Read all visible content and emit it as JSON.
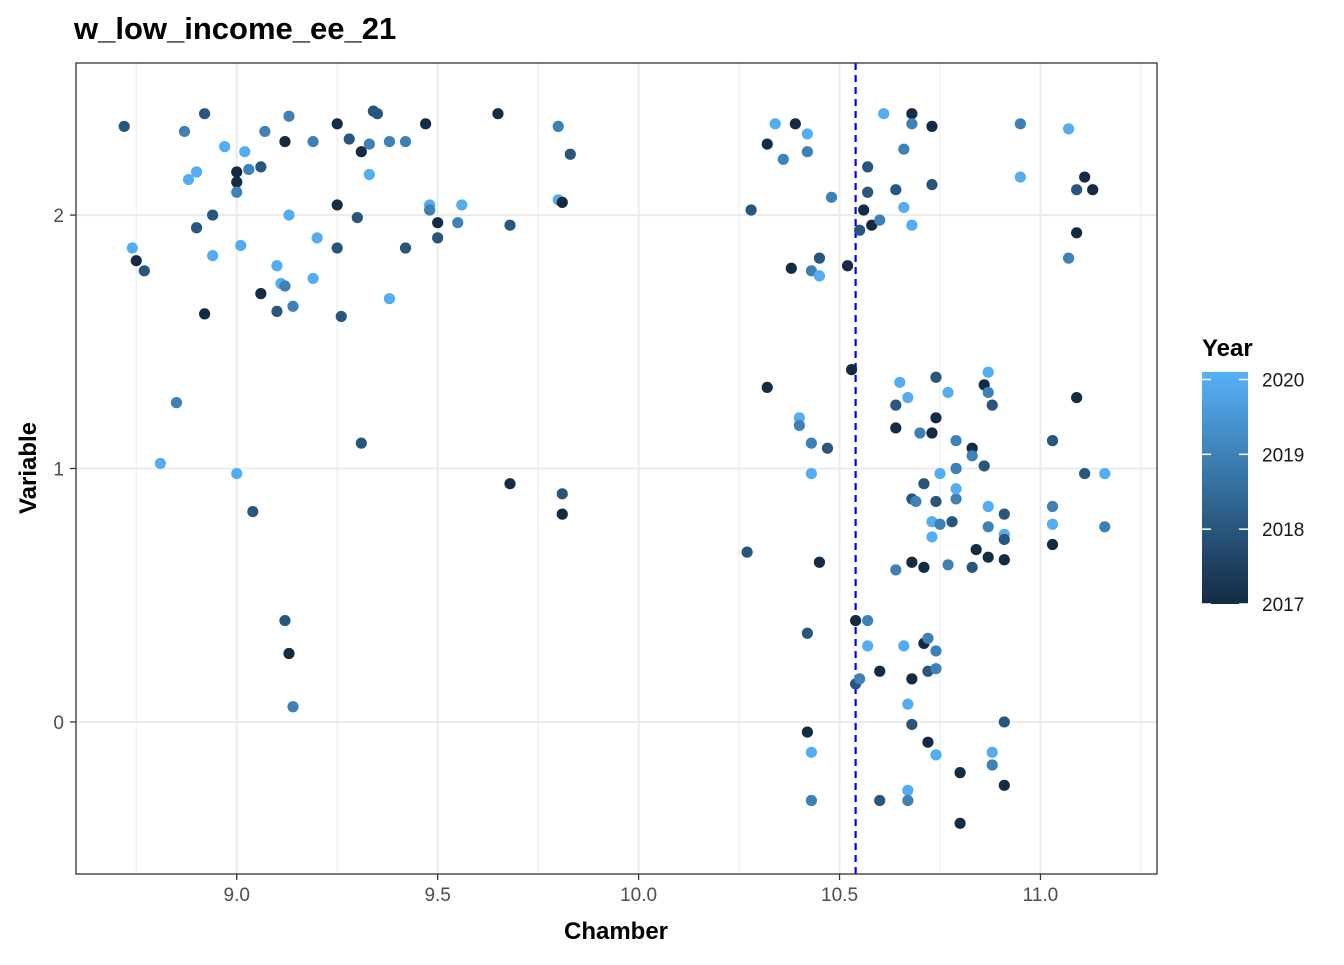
{
  "chart_data": {
    "type": "scatter",
    "title": "w_low_income_ee_21",
    "xlabel": "Chamber",
    "ylabel": "Variable",
    "xlim": [
      8.6,
      11.29
    ],
    "ylim": [
      -0.6,
      2.6
    ],
    "x_ticks": [
      9.0,
      9.5,
      10.0,
      10.5,
      11.0
    ],
    "x_tick_labels": [
      "9.0",
      "9.5",
      "10.0",
      "10.5",
      "11.0"
    ],
    "y_ticks": [
      0,
      1,
      2
    ],
    "y_tick_labels": [
      "0",
      "1",
      "2"
    ],
    "grid": true,
    "vline": {
      "x": 10.54,
      "color": "#0000ff",
      "style": "dashed"
    },
    "legend": {
      "title": "Year",
      "position": "right",
      "type": "colorbar",
      "ticks": [
        2017,
        2018,
        2019,
        2020
      ],
      "tick_labels": [
        "2017",
        "2018",
        "2019",
        "2020"
      ],
      "low_color": "#132b43",
      "high_color": "#56b1f7",
      "range": [
        2017,
        2020.1
      ]
    },
    "colors": {
      "low": "#132b43",
      "high": "#56b1f7",
      "vline": "#0000ff",
      "grid": "#ebebeb",
      "border": "#333333"
    },
    "points": [
      {
        "x": 8.72,
        "y": 2.35,
        "year": 2018
      },
      {
        "x": 8.74,
        "y": 1.87,
        "year": 2020
      },
      {
        "x": 8.75,
        "y": 1.82,
        "year": 2017
      },
      {
        "x": 8.77,
        "y": 1.78,
        "year": 2018
      },
      {
        "x": 8.81,
        "y": 1.02,
        "year": 2020
      },
      {
        "x": 8.85,
        "y": 1.26,
        "year": 2019
      },
      {
        "x": 8.87,
        "y": 2.33,
        "year": 2019
      },
      {
        "x": 8.88,
        "y": 2.14,
        "year": 2020
      },
      {
        "x": 8.9,
        "y": 2.17,
        "year": 2020
      },
      {
        "x": 8.9,
        "y": 1.95,
        "year": 2018
      },
      {
        "x": 8.92,
        "y": 2.4,
        "year": 2018
      },
      {
        "x": 8.92,
        "y": 1.61,
        "year": 2017
      },
      {
        "x": 8.94,
        "y": 2.0,
        "year": 2018
      },
      {
        "x": 8.94,
        "y": 1.84,
        "year": 2020
      },
      {
        "x": 8.97,
        "y": 2.27,
        "year": 2020
      },
      {
        "x": 9.0,
        "y": 2.17,
        "year": 2017
      },
      {
        "x": 9.0,
        "y": 2.13,
        "year": 2017
      },
      {
        "x": 9.0,
        "y": 2.09,
        "year": 2019
      },
      {
        "x": 9.0,
        "y": 0.98,
        "year": 2020
      },
      {
        "x": 9.01,
        "y": 1.88,
        "year": 2020
      },
      {
        "x": 9.02,
        "y": 2.25,
        "year": 2020
      },
      {
        "x": 9.03,
        "y": 2.18,
        "year": 2019
      },
      {
        "x": 9.04,
        "y": 0.83,
        "year": 2018
      },
      {
        "x": 9.06,
        "y": 2.19,
        "year": 2018
      },
      {
        "x": 9.06,
        "y": 1.69,
        "year": 2017
      },
      {
        "x": 9.07,
        "y": 2.33,
        "year": 2019
      },
      {
        "x": 9.1,
        "y": 1.8,
        "year": 2020
      },
      {
        "x": 9.1,
        "y": 1.62,
        "year": 2018
      },
      {
        "x": 9.11,
        "y": 1.73,
        "year": 2020
      },
      {
        "x": 9.12,
        "y": 2.29,
        "year": 2017
      },
      {
        "x": 9.12,
        "y": 1.72,
        "year": 2019
      },
      {
        "x": 9.12,
        "y": 0.4,
        "year": 2018
      },
      {
        "x": 9.13,
        "y": 2.39,
        "year": 2019
      },
      {
        "x": 9.13,
        "y": 2.0,
        "year": 2020
      },
      {
        "x": 9.13,
        "y": 0.27,
        "year": 2017
      },
      {
        "x": 9.14,
        "y": 1.64,
        "year": 2019
      },
      {
        "x": 9.14,
        "y": 0.06,
        "year": 2019
      },
      {
        "x": 9.19,
        "y": 2.29,
        "year": 2019
      },
      {
        "x": 9.19,
        "y": 1.75,
        "year": 2020
      },
      {
        "x": 9.2,
        "y": 1.91,
        "year": 2020
      },
      {
        "x": 9.25,
        "y": 2.36,
        "year": 2017
      },
      {
        "x": 9.25,
        "y": 2.04,
        "year": 2017
      },
      {
        "x": 9.25,
        "y": 1.87,
        "year": 2018
      },
      {
        "x": 9.26,
        "y": 1.6,
        "year": 2018
      },
      {
        "x": 9.28,
        "y": 2.3,
        "year": 2018
      },
      {
        "x": 9.3,
        "y": 1.99,
        "year": 2018
      },
      {
        "x": 9.31,
        "y": 2.25,
        "year": 2017
      },
      {
        "x": 9.31,
        "y": 1.1,
        "year": 2018
      },
      {
        "x": 9.33,
        "y": 2.28,
        "year": 2019
      },
      {
        "x": 9.33,
        "y": 2.16,
        "year": 2020
      },
      {
        "x": 9.34,
        "y": 2.41,
        "year": 2018
      },
      {
        "x": 9.35,
        "y": 2.4,
        "year": 2018
      },
      {
        "x": 9.38,
        "y": 2.29,
        "year": 2019
      },
      {
        "x": 9.38,
        "y": 1.67,
        "year": 2020
      },
      {
        "x": 9.42,
        "y": 2.29,
        "year": 2019
      },
      {
        "x": 9.42,
        "y": 1.87,
        "year": 2018
      },
      {
        "x": 9.47,
        "y": 2.36,
        "year": 2017
      },
      {
        "x": 9.48,
        "y": 2.04,
        "year": 2020
      },
      {
        "x": 9.48,
        "y": 2.02,
        "year": 2019
      },
      {
        "x": 9.5,
        "y": 1.97,
        "year": 2017
      },
      {
        "x": 9.5,
        "y": 1.91,
        "year": 2018
      },
      {
        "x": 9.55,
        "y": 1.97,
        "year": 2019
      },
      {
        "x": 9.56,
        "y": 2.04,
        "year": 2020
      },
      {
        "x": 9.65,
        "y": 2.4,
        "year": 2017
      },
      {
        "x": 9.68,
        "y": 1.96,
        "year": 2018
      },
      {
        "x": 9.68,
        "y": 0.94,
        "year": 2017
      },
      {
        "x": 9.8,
        "y": 2.35,
        "year": 2019
      },
      {
        "x": 9.8,
        "y": 2.06,
        "year": 2020
      },
      {
        "x": 9.81,
        "y": 2.05,
        "year": 2017
      },
      {
        "x": 9.81,
        "y": 0.9,
        "year": 2018
      },
      {
        "x": 9.81,
        "y": 0.82,
        "year": 2017
      },
      {
        "x": 9.83,
        "y": 2.24,
        "year": 2018
      },
      {
        "x": 10.27,
        "y": 0.67,
        "year": 2018
      },
      {
        "x": 10.28,
        "y": 2.02,
        "year": 2018
      },
      {
        "x": 10.32,
        "y": 2.28,
        "year": 2017
      },
      {
        "x": 10.32,
        "y": 1.32,
        "year": 2017
      },
      {
        "x": 10.34,
        "y": 2.36,
        "year": 2020
      },
      {
        "x": 10.36,
        "y": 2.22,
        "year": 2019
      },
      {
        "x": 10.38,
        "y": 1.79,
        "year": 2017
      },
      {
        "x": 10.39,
        "y": 2.36,
        "year": 2017
      },
      {
        "x": 10.4,
        "y": 1.2,
        "year": 2020
      },
      {
        "x": 10.4,
        "y": 1.17,
        "year": 2019
      },
      {
        "x": 10.42,
        "y": 2.32,
        "year": 2020
      },
      {
        "x": 10.42,
        "y": 2.25,
        "year": 2019
      },
      {
        "x": 10.42,
        "y": 0.35,
        "year": 2018
      },
      {
        "x": 10.42,
        "y": -0.04,
        "year": 2017
      },
      {
        "x": 10.43,
        "y": 1.78,
        "year": 2019
      },
      {
        "x": 10.43,
        "y": 1.1,
        "year": 2019
      },
      {
        "x": 10.43,
        "y": 0.98,
        "year": 2020
      },
      {
        "x": 10.43,
        "y": -0.12,
        "year": 2020
      },
      {
        "x": 10.43,
        "y": -0.31,
        "year": 2019
      },
      {
        "x": 10.45,
        "y": 1.83,
        "year": 2018
      },
      {
        "x": 10.45,
        "y": 1.76,
        "year": 2020
      },
      {
        "x": 10.45,
        "y": 0.63,
        "year": 2017
      },
      {
        "x": 10.47,
        "y": 1.08,
        "year": 2018
      },
      {
        "x": 10.48,
        "y": 2.07,
        "year": 2019
      },
      {
        "x": 10.52,
        "y": 1.8,
        "year": 2017
      },
      {
        "x": 10.53,
        "y": 1.39,
        "year": 2017
      },
      {
        "x": 10.54,
        "y": 0.4,
        "year": 2017
      },
      {
        "x": 10.54,
        "y": 0.15,
        "year": 2018
      },
      {
        "x": 10.55,
        "y": 1.94,
        "year": 2018
      },
      {
        "x": 10.55,
        "y": 0.17,
        "year": 2019
      },
      {
        "x": 10.56,
        "y": 2.02,
        "year": 2017
      },
      {
        "x": 10.57,
        "y": 2.19,
        "year": 2018
      },
      {
        "x": 10.57,
        "y": 2.09,
        "year": 2018
      },
      {
        "x": 10.57,
        "y": 0.4,
        "year": 2019
      },
      {
        "x": 10.57,
        "y": 0.3,
        "year": 2020
      },
      {
        "x": 10.58,
        "y": 1.96,
        "year": 2017
      },
      {
        "x": 10.6,
        "y": 1.98,
        "year": 2019
      },
      {
        "x": 10.6,
        "y": 0.2,
        "year": 2017
      },
      {
        "x": 10.6,
        "y": -0.31,
        "year": 2018
      },
      {
        "x": 10.61,
        "y": 2.4,
        "year": 2020
      },
      {
        "x": 10.64,
        "y": 2.1,
        "year": 2018
      },
      {
        "x": 10.64,
        "y": 1.25,
        "year": 2018
      },
      {
        "x": 10.64,
        "y": 1.16,
        "year": 2017
      },
      {
        "x": 10.64,
        "y": 0.6,
        "year": 2019
      },
      {
        "x": 10.65,
        "y": 1.34,
        "year": 2020
      },
      {
        "x": 10.66,
        "y": 2.26,
        "year": 2019
      },
      {
        "x": 10.66,
        "y": 2.03,
        "year": 2020
      },
      {
        "x": 10.66,
        "y": 0.3,
        "year": 2020
      },
      {
        "x": 10.67,
        "y": 1.28,
        "year": 2020
      },
      {
        "x": 10.67,
        "y": 0.07,
        "year": 2020
      },
      {
        "x": 10.67,
        "y": -0.27,
        "year": 2020
      },
      {
        "x": 10.67,
        "y": -0.31,
        "year": 2019
      },
      {
        "x": 10.68,
        "y": 2.4,
        "year": 2017
      },
      {
        "x": 10.68,
        "y": 2.36,
        "year": 2019
      },
      {
        "x": 10.68,
        "y": 1.96,
        "year": 2020
      },
      {
        "x": 10.68,
        "y": 0.88,
        "year": 2018
      },
      {
        "x": 10.68,
        "y": 0.63,
        "year": 2017
      },
      {
        "x": 10.68,
        "y": 0.17,
        "year": 2017
      },
      {
        "x": 10.68,
        "y": -0.01,
        "year": 2018
      },
      {
        "x": 10.69,
        "y": 0.87,
        "year": 2019
      },
      {
        "x": 10.7,
        "y": 1.14,
        "year": 2019
      },
      {
        "x": 10.71,
        "y": 0.94,
        "year": 2018
      },
      {
        "x": 10.71,
        "y": 0.61,
        "year": 2017
      },
      {
        "x": 10.71,
        "y": 0.31,
        "year": 2017
      },
      {
        "x": 10.72,
        "y": 0.33,
        "year": 2019
      },
      {
        "x": 10.72,
        "y": 0.2,
        "year": 2018
      },
      {
        "x": 10.72,
        "y": -0.08,
        "year": 2017
      },
      {
        "x": 10.73,
        "y": 0.79,
        "year": 2020
      },
      {
        "x": 10.73,
        "y": 2.35,
        "year": 2017
      },
      {
        "x": 10.73,
        "y": 2.12,
        "year": 2018
      },
      {
        "x": 10.73,
        "y": 1.14,
        "year": 2017
      },
      {
        "x": 10.73,
        "y": 0.73,
        "year": 2020
      },
      {
        "x": 10.74,
        "y": 1.36,
        "year": 2018
      },
      {
        "x": 10.74,
        "y": 1.2,
        "year": 2017
      },
      {
        "x": 10.74,
        "y": 0.87,
        "year": 2018
      },
      {
        "x": 10.74,
        "y": 0.28,
        "year": 2019
      },
      {
        "x": 10.74,
        "y": 0.21,
        "year": 2019
      },
      {
        "x": 10.74,
        "y": -0.13,
        "year": 2020
      },
      {
        "x": 10.75,
        "y": 0.98,
        "year": 2020
      },
      {
        "x": 10.75,
        "y": 0.78,
        "year": 2019
      },
      {
        "x": 10.77,
        "y": 1.3,
        "year": 2020
      },
      {
        "x": 10.77,
        "y": 0.62,
        "year": 2019
      },
      {
        "x": 10.78,
        "y": 0.79,
        "year": 2018
      },
      {
        "x": 10.79,
        "y": 1.11,
        "year": 2019
      },
      {
        "x": 10.79,
        "y": 1.0,
        "year": 2020
      },
      {
        "x": 10.79,
        "y": 0.88,
        "year": 2019
      },
      {
        "x": 10.79,
        "y": 0.92,
        "year": 2020
      },
      {
        "x": 10.79,
        "y": 1.0,
        "year": 2019
      },
      {
        "x": 10.8,
        "y": -0.2,
        "year": 2017
      },
      {
        "x": 10.8,
        "y": -0.4,
        "year": 2017
      },
      {
        "x": 10.83,
        "y": 1.08,
        "year": 2017
      },
      {
        "x": 10.83,
        "y": 1.05,
        "year": 2019
      },
      {
        "x": 10.83,
        "y": 0.61,
        "year": 2018
      },
      {
        "x": 10.84,
        "y": 0.68,
        "year": 2017
      },
      {
        "x": 10.86,
        "y": 1.33,
        "year": 2017
      },
      {
        "x": 10.86,
        "y": 1.01,
        "year": 2018
      },
      {
        "x": 10.87,
        "y": 1.38,
        "year": 2020
      },
      {
        "x": 10.87,
        "y": 1.3,
        "year": 2019
      },
      {
        "x": 10.87,
        "y": 0.85,
        "year": 2020
      },
      {
        "x": 10.87,
        "y": 0.77,
        "year": 2019
      },
      {
        "x": 10.87,
        "y": 0.65,
        "year": 2017
      },
      {
        "x": 10.88,
        "y": 1.25,
        "year": 2018
      },
      {
        "x": 10.88,
        "y": -0.12,
        "year": 2020
      },
      {
        "x": 10.88,
        "y": -0.17,
        "year": 2019
      },
      {
        "x": 10.91,
        "y": 0.82,
        "year": 2018
      },
      {
        "x": 10.91,
        "y": 0.74,
        "year": 2020
      },
      {
        "x": 10.91,
        "y": 0.72,
        "year": 2018
      },
      {
        "x": 10.91,
        "y": 0.64,
        "year": 2017
      },
      {
        "x": 10.91,
        "y": 0.0,
        "year": 2018
      },
      {
        "x": 10.91,
        "y": -0.25,
        "year": 2017
      },
      {
        "x": 10.95,
        "y": 2.36,
        "year": 2019
      },
      {
        "x": 10.95,
        "y": 2.15,
        "year": 2020
      },
      {
        "x": 11.03,
        "y": 1.11,
        "year": 2018
      },
      {
        "x": 11.03,
        "y": 0.85,
        "year": 2019
      },
      {
        "x": 11.03,
        "y": 0.78,
        "year": 2020
      },
      {
        "x": 11.03,
        "y": 0.7,
        "year": 2017
      },
      {
        "x": 11.07,
        "y": 2.34,
        "year": 2020
      },
      {
        "x": 11.07,
        "y": 1.83,
        "year": 2019
      },
      {
        "x": 11.09,
        "y": 2.1,
        "year": 2018
      },
      {
        "x": 11.09,
        "y": 1.93,
        "year": 2017
      },
      {
        "x": 11.09,
        "y": 1.28,
        "year": 2017
      },
      {
        "x": 11.11,
        "y": 2.15,
        "year": 2017
      },
      {
        "x": 11.11,
        "y": 0.98,
        "year": 2018
      },
      {
        "x": 11.13,
        "y": 2.1,
        "year": 2017
      },
      {
        "x": 11.16,
        "y": 0.98,
        "year": 2020
      },
      {
        "x": 11.16,
        "y": 0.77,
        "year": 2019
      }
    ]
  }
}
